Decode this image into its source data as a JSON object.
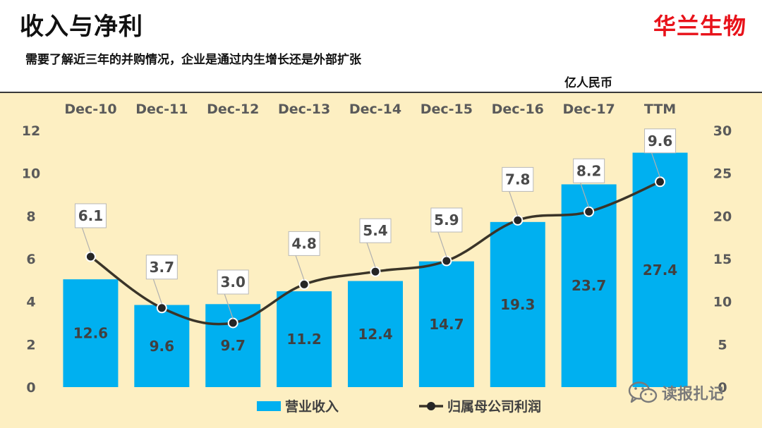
{
  "header": {
    "title": "收入与净利",
    "brand": "华兰生物",
    "subtitle": "需要了解近三年的并购情况，企业是通过内生增长还是外部扩张",
    "unit": "亿人民币"
  },
  "colors": {
    "bar": "#00b0f0",
    "line": "#3a3428",
    "brand": "#e8121a",
    "background": "#fdefc2"
  },
  "watermark": {
    "text": "读报扎记",
    "icon": "wechat-icon"
  },
  "chart_data": {
    "type": "bar+line",
    "categories": [
      "Dec-10",
      "Dec-11",
      "Dec-12",
      "Dec-13",
      "Dec-14",
      "Dec-15",
      "Dec-16",
      "Dec-17",
      "TTM"
    ],
    "series": [
      {
        "name": "营业收入",
        "type": "bar",
        "axis": "right",
        "values": [
          12.6,
          9.6,
          9.7,
          11.2,
          12.4,
          14.7,
          19.3,
          23.7,
          27.4
        ],
        "labels": [
          "12.6",
          "9.6",
          "9.7",
          "11.2",
          "12.4",
          "14.7",
          "19.3",
          "23.7",
          "27.4"
        ]
      },
      {
        "name": "归属母公司利润",
        "type": "line",
        "axis": "left",
        "values": [
          6.1,
          3.7,
          3.0,
          4.8,
          5.4,
          5.9,
          7.8,
          8.2,
          9.6
        ],
        "labels": [
          "6.1",
          "3.7",
          "3.0",
          "4.8",
          "5.4",
          "5.9",
          "7.8",
          "8.2",
          "9.6"
        ]
      }
    ],
    "y_left": {
      "range": [
        0,
        12
      ],
      "ticks": [
        "0",
        "2",
        "4",
        "6",
        "8",
        "10",
        "12"
      ]
    },
    "y_right": {
      "range": [
        0,
        30
      ],
      "ticks": [
        "0",
        "5",
        "10",
        "15",
        "20",
        "25",
        "30"
      ]
    },
    "legend": {
      "placement": "bottom-center",
      "entries": [
        "营业收入",
        "归属母公司利润"
      ]
    },
    "grid": false
  }
}
